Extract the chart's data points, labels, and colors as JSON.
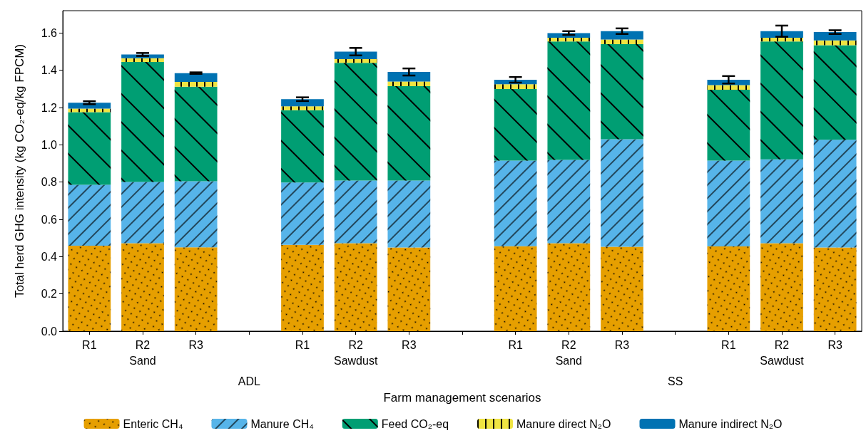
{
  "chart_data": {
    "type": "bar",
    "stacked": true,
    "categories": [
      "R1",
      "R2\nSand",
      "R3",
      null,
      "R1",
      "R2\nSawdust",
      "R3",
      null,
      "R1",
      "R2\nSand",
      "R3",
      null,
      "R1",
      "R2\nSawdust",
      "R3"
    ],
    "annotations": [
      "ADL",
      "SS"
    ],
    "xlabel": "Farm management scenarios",
    "ylabel": "Total herd GHG intensity (kg CO₂-eq/kg FPCM)",
    "ylim": [
      0,
      1.72
    ],
    "yticks": [
      {
        "value": 0,
        "label": "0.0"
      },
      {
        "value": 0.2,
        "label": "0.2"
      },
      {
        "value": 0.4,
        "label": "0.4"
      },
      {
        "value": 0.6,
        "label": "0.6"
      },
      {
        "value": 0.8,
        "label": "0.8"
      },
      {
        "value": 1.0,
        "label": "1.0"
      },
      {
        "value": 1.2,
        "label": "1.2"
      },
      {
        "value": 1.4,
        "label": "1.4"
      },
      {
        "value": 1.6,
        "label": "1.6"
      }
    ],
    "grid": false,
    "legend": "bottom",
    "series": [
      {
        "name": "Enteric CH₄",
        "color": "#e69f00",
        "values": [
          0.459,
          0.472,
          0.45,
          null,
          0.463,
          0.472,
          0.449,
          null,
          0.456,
          0.472,
          0.453,
          null,
          0.455,
          0.472,
          0.449
        ]
      },
      {
        "name": "Manure CH₄",
        "color": "#56b4e9",
        "values": [
          0.326,
          0.329,
          0.355,
          null,
          0.335,
          0.336,
          0.359,
          null,
          0.459,
          0.447,
          0.577,
          null,
          0.46,
          0.45,
          0.578
        ]
      },
      {
        "name": "Feed CO₂-eq",
        "color": "#009e73",
        "values": [
          0.39,
          0.644,
          0.507,
          null,
          0.388,
          0.632,
          0.507,
          null,
          0.385,
          0.636,
          0.51,
          null,
          0.381,
          0.633,
          0.508
        ]
      },
      {
        "name": "Manure direct N₂O",
        "color": "#f0e442",
        "values": [
          0.019,
          0.02,
          0.026,
          null,
          0.021,
          0.02,
          0.025,
          null,
          0.025,
          0.02,
          0.025,
          null,
          0.025,
          0.02,
          0.025
        ]
      },
      {
        "name": "Manure indirect N₂O",
        "color": "#0072b2",
        "values": [
          0.032,
          0.02,
          0.047,
          null,
          0.038,
          0.04,
          0.051,
          null,
          0.024,
          0.025,
          0.045,
          null,
          0.028,
          0.035,
          0.045
        ],
        "errors": [
          0.008,
          0.008,
          0.004,
          null,
          0.01,
          0.02,
          0.019,
          null,
          0.015,
          0.01,
          0.015,
          null,
          0.02,
          0.03,
          0.01
        ]
      }
    ]
  }
}
